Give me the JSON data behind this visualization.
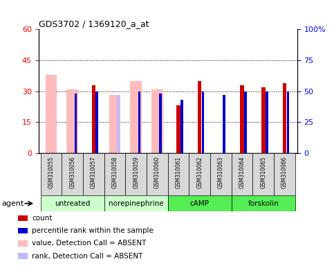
{
  "title": "GDS3702 / 1369120_a_at",
  "samples": [
    "GSM310055",
    "GSM310056",
    "GSM310057",
    "GSM310058",
    "GSM310059",
    "GSM310060",
    "GSM310061",
    "GSM310062",
    "GSM310063",
    "GSM310064",
    "GSM310065",
    "GSM310066"
  ],
  "red_bars": [
    null,
    null,
    33,
    null,
    null,
    null,
    23,
    35,
    null,
    33,
    32,
    34
  ],
  "pink_bars": [
    38,
    31,
    null,
    28,
    35,
    31,
    null,
    null,
    null,
    null,
    null,
    null
  ],
  "blue_bars_pct": [
    null,
    48,
    50,
    null,
    50,
    48,
    43,
    50,
    47,
    50,
    50,
    50
  ],
  "lightblue_bars_pct": [
    null,
    47,
    null,
    47,
    48,
    47,
    null,
    null,
    null,
    null,
    null,
    null
  ],
  "ylim_left": [
    0,
    60
  ],
  "ylim_right": [
    0,
    100
  ],
  "yticks_left": [
    0,
    15,
    30,
    45,
    60
  ],
  "yticks_right": [
    0,
    25,
    50,
    75,
    100
  ],
  "ytick_labels_left": [
    "0",
    "15",
    "30",
    "45",
    "60"
  ],
  "ytick_labels_right": [
    "0",
    "25",
    "50",
    "75",
    "100%"
  ],
  "red_color": "#cc0000",
  "pink_color": "#ffbbbb",
  "blue_color": "#0000cc",
  "lightblue_color": "#bbbbff",
  "group_defs": [
    {
      "label": "untreated",
      "start": 0,
      "end": 2,
      "color": "#ccffcc"
    },
    {
      "label": "norepinephrine",
      "start": 3,
      "end": 5,
      "color": "#ccffcc"
    },
    {
      "label": "cAMP",
      "start": 6,
      "end": 8,
      "color": "#55ee55"
    },
    {
      "label": "forskolin",
      "start": 9,
      "end": 11,
      "color": "#55ee55"
    }
  ],
  "legend_items": [
    {
      "color": "#cc0000",
      "label": "count"
    },
    {
      "color": "#0000cc",
      "label": "percentile rank within the sample"
    },
    {
      "color": "#ffbbbb",
      "label": "value, Detection Call = ABSENT"
    },
    {
      "color": "#bbbbff",
      "label": "rank, Detection Call = ABSENT"
    }
  ],
  "agent_label": "agent"
}
